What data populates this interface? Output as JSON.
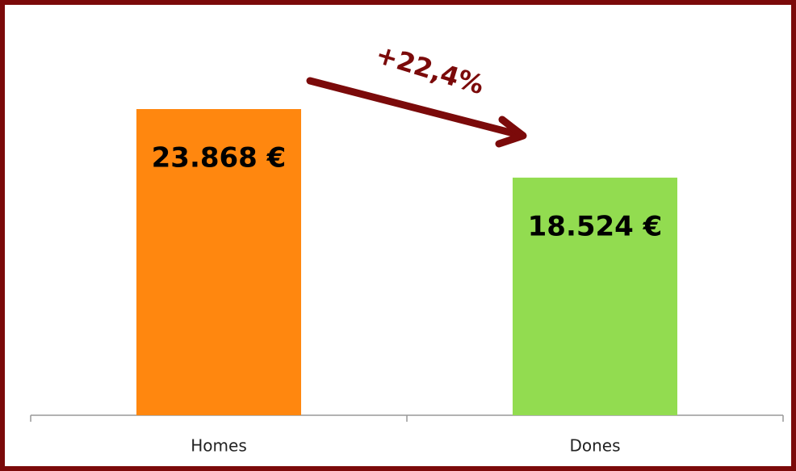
{
  "chart_data": {
    "type": "bar",
    "categories": [
      "Homes",
      "Dones"
    ],
    "values": [
      23868,
      18524
    ],
    "value_labels": [
      "23.868 €",
      "18.524 €"
    ],
    "colors": [
      "#ff870f",
      "#92dc50"
    ],
    "annotations": [
      "+22,4%"
    ]
  }
}
